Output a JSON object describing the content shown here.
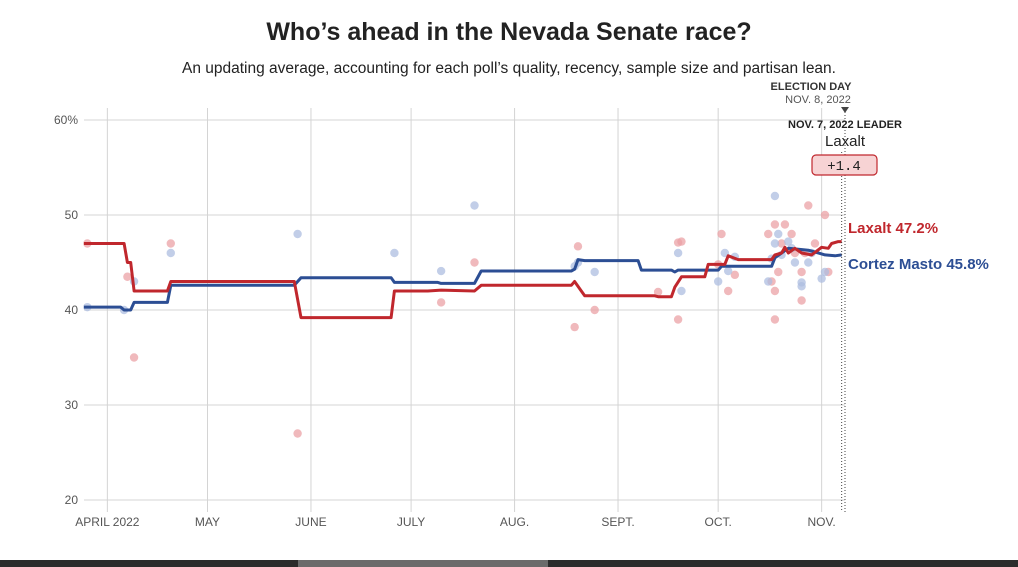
{
  "title": "Who’s ahead in the Nevada Senate race?",
  "subtitle": "An updating average, accounting for each poll’s quality, recency, sample size and partisan lean.",
  "colors": {
    "republican": "#c0272d",
    "democrat": "#2c4e94",
    "republican_dot": "#eba2a5",
    "democrat_dot": "#aebde0",
    "grid": "#d4d4d4",
    "axis_text": "#555555",
    "badge_fill": "#f7d3d4",
    "badge_stroke": "#c0272d"
  },
  "annotations": {
    "election_day_label": "ELECTION DAY",
    "election_day_date": "NOV. 8, 2022",
    "leader_heading": "NOV. 7, 2022 LEADER",
    "leader_name": "Laxalt",
    "leader_margin": "+1.4"
  },
  "end_labels": {
    "republican": "Laxalt 47.2%",
    "democrat": "Cortez Masto 45.8%"
  },
  "chart_data": {
    "type": "line",
    "title": "Who’s ahead in the Nevada Senate race?",
    "subtitle": "An updating average, accounting for each poll’s quality, recency, sample size and partisan lean.",
    "xlabel": "",
    "ylabel": "",
    "x_range": [
      "2022-03-25",
      "2022-11-08"
    ],
    "ylim": [
      20,
      60
    ],
    "y_ticks": [
      20,
      30,
      40,
      50,
      60
    ],
    "y_tick_labels": [
      "20",
      "30",
      "40",
      "50",
      "60%"
    ],
    "x_ticks": [
      {
        "date": "2022-04-01",
        "label": "APRIL 2022"
      },
      {
        "date": "2022-05-01",
        "label": "MAY"
      },
      {
        "date": "2022-06-01",
        "label": "JUNE"
      },
      {
        "date": "2022-07-01",
        "label": "JULY"
      },
      {
        "date": "2022-08-01",
        "label": "AUG."
      },
      {
        "date": "2022-09-01",
        "label": "SEPT."
      },
      {
        "date": "2022-10-01",
        "label": "OCT."
      },
      {
        "date": "2022-11-01",
        "label": "NOV."
      }
    ],
    "grid": true,
    "legend": "end-of-line labels",
    "series": [
      {
        "name": "Laxalt",
        "party": "republican",
        "final_value": 47.2,
        "line": [
          [
            "2022-03-25",
            47.0
          ],
          [
            "2022-04-06",
            47.0
          ],
          [
            "2022-04-07",
            45.0
          ],
          [
            "2022-04-08",
            45.0
          ],
          [
            "2022-04-09",
            42.0
          ],
          [
            "2022-04-19",
            42.0
          ],
          [
            "2022-04-20",
            43.0
          ],
          [
            "2022-05-27",
            43.0
          ],
          [
            "2022-05-29",
            39.2
          ],
          [
            "2022-06-25",
            39.2
          ],
          [
            "2022-06-26",
            42.0
          ],
          [
            "2022-07-06",
            42.0
          ],
          [
            "2022-07-10",
            42.1
          ],
          [
            "2022-07-20",
            42.0
          ],
          [
            "2022-07-22",
            42.6
          ],
          [
            "2022-08-18",
            42.6
          ],
          [
            "2022-08-19",
            43.0
          ],
          [
            "2022-08-21",
            42.0
          ],
          [
            "2022-08-22",
            41.5
          ],
          [
            "2022-09-12",
            41.5
          ],
          [
            "2022-09-13",
            41.4
          ],
          [
            "2022-09-17",
            41.4
          ],
          [
            "2022-09-18",
            42.4
          ],
          [
            "2022-09-20",
            43.5
          ],
          [
            "2022-09-27",
            43.5
          ],
          [
            "2022-09-28",
            44.8
          ],
          [
            "2022-10-03",
            44.8
          ],
          [
            "2022-10-04",
            45.7
          ],
          [
            "2022-10-07",
            45.3
          ],
          [
            "2022-10-17",
            45.3
          ],
          [
            "2022-10-18",
            45.8
          ],
          [
            "2022-10-20",
            46.0
          ],
          [
            "2022-10-21",
            46.6
          ],
          [
            "2022-10-22",
            46.0
          ],
          [
            "2022-10-24",
            46.5
          ],
          [
            "2022-10-26",
            46.0
          ],
          [
            "2022-10-29",
            45.8
          ],
          [
            "2022-11-01",
            46.6
          ],
          [
            "2022-11-03",
            46.5
          ],
          [
            "2022-11-04",
            47.0
          ],
          [
            "2022-11-06",
            47.2
          ],
          [
            "2022-11-07",
            47.2
          ]
        ],
        "polls": [
          [
            "2022-03-26",
            47.0
          ],
          [
            "2022-04-07",
            43.5
          ],
          [
            "2022-04-09",
            35.0
          ],
          [
            "2022-04-20",
            47.0
          ],
          [
            "2022-05-28",
            27.0
          ],
          [
            "2022-07-10",
            40.8
          ],
          [
            "2022-07-20",
            45.0
          ],
          [
            "2022-08-19",
            38.2
          ],
          [
            "2022-08-20",
            46.7
          ],
          [
            "2022-08-25",
            40.0
          ],
          [
            "2022-09-13",
            41.9
          ],
          [
            "2022-09-19",
            47.1
          ],
          [
            "2022-09-19",
            39.0
          ],
          [
            "2022-09-20",
            47.2
          ],
          [
            "2022-10-01",
            44.8
          ],
          [
            "2022-10-02",
            48.0
          ],
          [
            "2022-10-04",
            42.0
          ],
          [
            "2022-10-06",
            43.7
          ],
          [
            "2022-10-16",
            48.0
          ],
          [
            "2022-10-17",
            43.0
          ],
          [
            "2022-10-18",
            49.0
          ],
          [
            "2022-10-18",
            42.0
          ],
          [
            "2022-10-18",
            39.0
          ],
          [
            "2022-10-19",
            44.0
          ],
          [
            "2022-10-20",
            47.0
          ],
          [
            "2022-10-21",
            49.0
          ],
          [
            "2022-10-23",
            48.0
          ],
          [
            "2022-10-24",
            46.0
          ],
          [
            "2022-10-26",
            44.0
          ],
          [
            "2022-10-26",
            41.0
          ],
          [
            "2022-10-27",
            46.0
          ],
          [
            "2022-10-28",
            51.0
          ],
          [
            "2022-10-30",
            47.0
          ],
          [
            "2022-11-02",
            50.0
          ],
          [
            "2022-11-03",
            44.0
          ]
        ]
      },
      {
        "name": "Cortez Masto",
        "party": "democrat",
        "final_value": 45.8,
        "line": [
          [
            "2022-03-25",
            40.3
          ],
          [
            "2022-04-05",
            40.3
          ],
          [
            "2022-04-06",
            40.0
          ],
          [
            "2022-04-08",
            40.0
          ],
          [
            "2022-04-09",
            40.8
          ],
          [
            "2022-04-19",
            40.8
          ],
          [
            "2022-04-20",
            42.6
          ],
          [
            "2022-05-27",
            42.6
          ],
          [
            "2022-05-29",
            43.4
          ],
          [
            "2022-06-25",
            43.4
          ],
          [
            "2022-06-26",
            42.9
          ],
          [
            "2022-07-09",
            42.9
          ],
          [
            "2022-07-10",
            42.8
          ],
          [
            "2022-07-20",
            42.8
          ],
          [
            "2022-07-22",
            44.1
          ],
          [
            "2022-08-18",
            44.1
          ],
          [
            "2022-08-19",
            44.3
          ],
          [
            "2022-08-20",
            45.3
          ],
          [
            "2022-08-22",
            45.2
          ],
          [
            "2022-09-07",
            45.2
          ],
          [
            "2022-09-08",
            44.2
          ],
          [
            "2022-09-17",
            44.2
          ],
          [
            "2022-09-18",
            44.0
          ],
          [
            "2022-09-19",
            44.2
          ],
          [
            "2022-10-01",
            44.2
          ],
          [
            "2022-10-02",
            44.6
          ],
          [
            "2022-10-17",
            44.6
          ],
          [
            "2022-10-18",
            45.5
          ],
          [
            "2022-10-20",
            46.0
          ],
          [
            "2022-10-22",
            46.5
          ],
          [
            "2022-10-25",
            46.4
          ],
          [
            "2022-10-28",
            46.3
          ],
          [
            "2022-10-30",
            46.1
          ],
          [
            "2022-11-02",
            45.8
          ],
          [
            "2022-11-05",
            45.7
          ],
          [
            "2022-11-07",
            45.8
          ]
        ],
        "polls": [
          [
            "2022-03-26",
            40.3
          ],
          [
            "2022-04-06",
            40.0
          ],
          [
            "2022-04-09",
            43.0
          ],
          [
            "2022-04-20",
            46.0
          ],
          [
            "2022-05-28",
            48.0
          ],
          [
            "2022-06-26",
            46.0
          ],
          [
            "2022-07-10",
            44.1
          ],
          [
            "2022-07-20",
            51.0
          ],
          [
            "2022-08-19",
            44.6
          ],
          [
            "2022-08-20",
            45.0
          ],
          [
            "2022-08-25",
            44.0
          ],
          [
            "2022-09-19",
            46.0
          ],
          [
            "2022-09-20",
            42.0
          ],
          [
            "2022-10-01",
            43.0
          ],
          [
            "2022-10-03",
            46.0
          ],
          [
            "2022-10-04",
            44.1
          ],
          [
            "2022-10-06",
            45.6
          ],
          [
            "2022-10-16",
            43.0
          ],
          [
            "2022-10-17",
            45.4
          ],
          [
            "2022-10-18",
            52.0
          ],
          [
            "2022-10-18",
            47.0
          ],
          [
            "2022-10-19",
            48.0
          ],
          [
            "2022-10-20",
            45.8
          ],
          [
            "2022-10-22",
            47.2
          ],
          [
            "2022-10-23",
            46.5
          ],
          [
            "2022-10-24",
            45.0
          ],
          [
            "2022-10-26",
            42.9
          ],
          [
            "2022-10-26",
            42.5
          ],
          [
            "2022-10-28",
            45.0
          ],
          [
            "2022-10-29",
            46.0
          ],
          [
            "2022-11-01",
            43.3
          ],
          [
            "2022-11-02",
            44.0
          ]
        ]
      }
    ],
    "markers": [
      {
        "date": "2022-11-07",
        "label": "NOV. 7, 2022 LEADER",
        "leader": "Laxalt",
        "margin": "+1.4",
        "style": "dotted"
      },
      {
        "date": "2022-11-08",
        "label": "ELECTION DAY",
        "sublabel": "NOV. 8, 2022",
        "style": "dotted"
      }
    ]
  }
}
